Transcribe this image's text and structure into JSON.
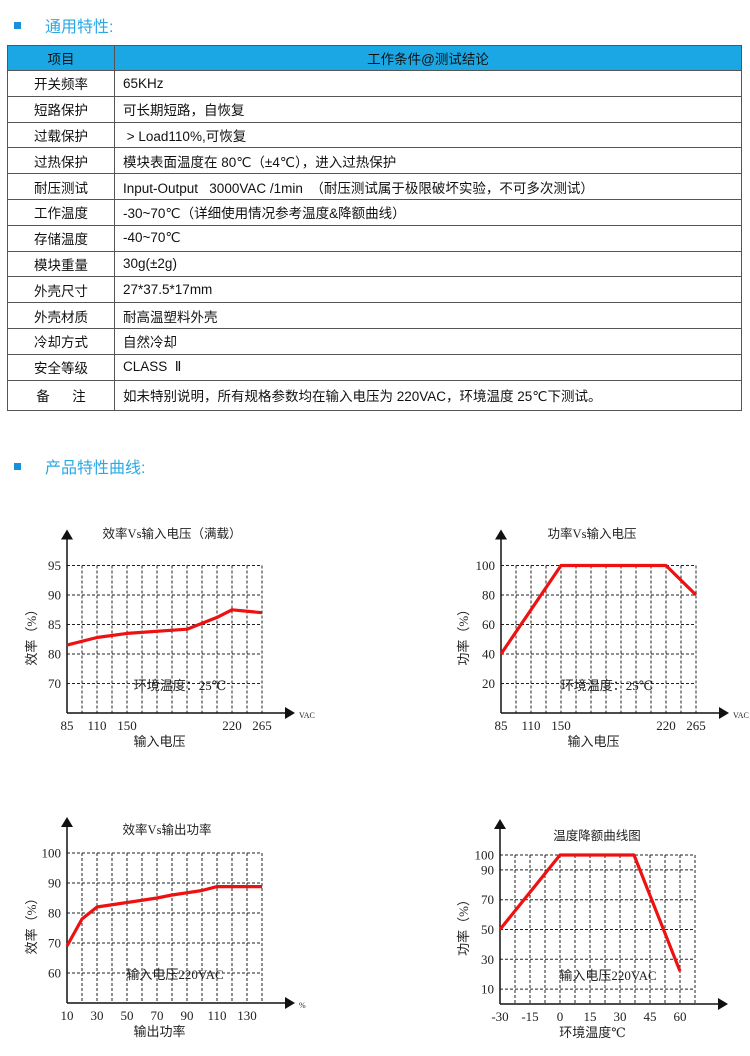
{
  "sections": {
    "general": "通用特性:",
    "curves": "产品特性曲线:"
  },
  "table": {
    "headers": [
      "项目",
      "工作条件@测试结论"
    ],
    "rows": [
      {
        "item": "开关频率",
        "value": "65KHz"
      },
      {
        "item": "短路保护",
        "value": "可长期短路，自恢复"
      },
      {
        "item": "过载保护",
        "value": " > Load110%,可恢复"
      },
      {
        "item": "过热保护",
        "value": "模块表面温度在 80℃（±4℃），进入过热保护"
      },
      {
        "item": "耐压测试",
        "value": "Input-Output   3000VAC /1min  （耐压测试属于极限破坏实验，不可多次测试）"
      },
      {
        "item": "工作温度",
        "value": "-30~70℃（详细使用情况参考温度&降额曲线）"
      },
      {
        "item": "存储温度",
        "value": "-40~70℃"
      },
      {
        "item": "模块重量",
        "value": "30g(±2g)"
      },
      {
        "item": "外壳尺寸",
        "value": "27*37.5*17mm"
      },
      {
        "item": "外壳材质",
        "value": "耐高温塑料外壳"
      },
      {
        "item": "冷却方式",
        "value": "自然冷却"
      },
      {
        "item": "安全等级",
        "value": "CLASS  Ⅱ"
      },
      {
        "item": "备      注",
        "value": "如未特别说明，所有规格参数均在输入电压为 220VAC，环境温度 25℃下测试。"
      }
    ],
    "header_color": "#1aa7e4"
  },
  "chart_data": [
    {
      "type": "line",
      "title": "效率Vs输入电压（满载）",
      "xlabel": "输入电压",
      "ylabel": "效率（%）",
      "x_unit": "VAC",
      "annotation": "环境温度：25℃",
      "x_ticks": [
        85,
        110,
        150,
        220,
        265
      ],
      "y_ticks": [
        70,
        80,
        85,
        90,
        95
      ],
      "grid": true,
      "line_color": "#ee1111",
      "x": [
        85,
        110,
        150,
        190,
        210,
        220,
        265
      ],
      "y": [
        81.5,
        82.8,
        83.5,
        84.2,
        86.2,
        87.5,
        87.0
      ]
    },
    {
      "type": "line",
      "title": "功率Vs输入电压",
      "xlabel": "输入电压",
      "ylabel": "功率（%）",
      "x_unit": "VAC",
      "annotation": "环境温度：25℃",
      "x_ticks": [
        85,
        110,
        150,
        220,
        265
      ],
      "y_ticks": [
        20,
        40,
        60,
        80,
        100
      ],
      "grid": true,
      "line_color": "#ee1111",
      "x": [
        85,
        150,
        220,
        265
      ],
      "y": [
        40,
        100,
        100,
        80
      ]
    },
    {
      "type": "line",
      "title": "效率Vs输出功率",
      "xlabel": "输出功率",
      "ylabel": "效率（%）",
      "x_unit": "%",
      "annotation": "输入电压220VAC",
      "x_ticks": [
        10,
        30,
        50,
        70,
        90,
        110,
        130
      ],
      "y_ticks": [
        60,
        70,
        80,
        90,
        100
      ],
      "grid": true,
      "line_color": "#ee1111",
      "x": [
        10,
        20,
        30,
        50,
        70,
        80,
        100,
        110,
        140
      ],
      "y": [
        69,
        78,
        82,
        83.5,
        85,
        86,
        87.5,
        88.8,
        88.8
      ]
    },
    {
      "type": "line",
      "title": "温度降额曲线图",
      "xlabel": "环境温度℃",
      "ylabel": "功率（%）",
      "x_unit": "",
      "annotation": "输入电压220VAC",
      "x_ticks": [
        -30,
        -15,
        0,
        15,
        30,
        45,
        60
      ],
      "y_ticks": [
        10,
        30,
        50,
        70,
        90,
        100
      ],
      "grid": true,
      "line_color": "#ee1111",
      "x": [
        -30,
        0,
        37,
        60
      ],
      "y": [
        50,
        100,
        100,
        22
      ]
    }
  ]
}
